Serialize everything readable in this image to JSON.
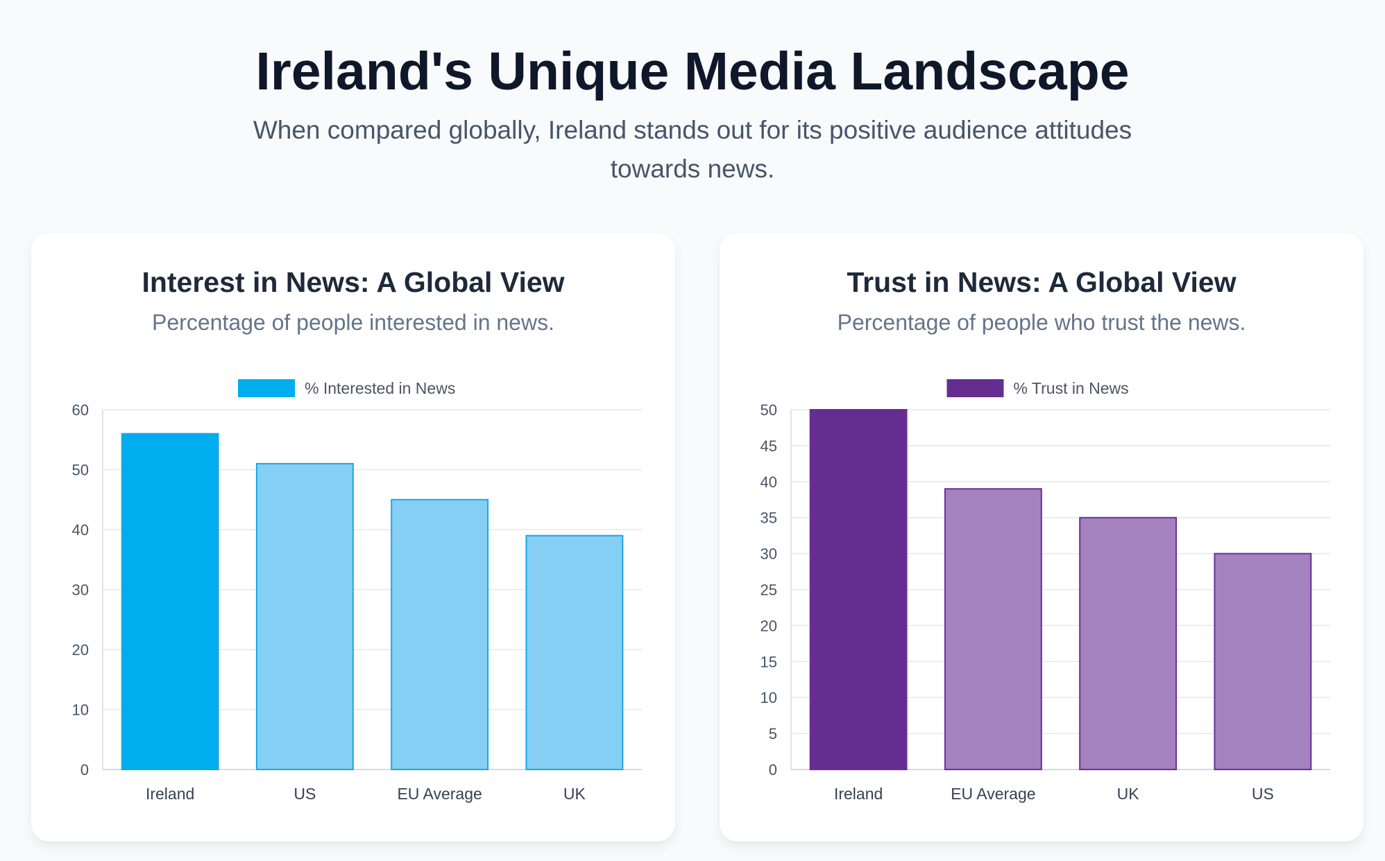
{
  "header": {
    "title": "Ireland's Unique Media Landscape",
    "subtitle": "When compared globally, Ireland stands out for its positive audience attitudes towards news."
  },
  "cards": [
    {
      "title": "Interest in News: A Global View",
      "subtitle": "Percentage of people interested in news."
    },
    {
      "title": "Trust in News: A Global View",
      "subtitle": "Percentage of people who trust the news."
    }
  ],
  "chart_data": [
    {
      "type": "bar",
      "categories": [
        "Ireland",
        "US",
        "EU Average",
        "UK"
      ],
      "series": [
        {
          "name": "% Interested in News",
          "values": [
            56,
            51,
            45,
            39
          ]
        }
      ],
      "ylim": [
        0,
        60
      ],
      "yticks": [
        0,
        10,
        20,
        30,
        40,
        50,
        60
      ],
      "grid": true,
      "legend": "top-center",
      "colors": {
        "highlight_fill": "#00aeef",
        "fill": "#85cff5",
        "border": "#1aa7e6",
        "legend": "#00aeef"
      }
    },
    {
      "type": "bar",
      "categories": [
        "Ireland",
        "EU Average",
        "UK",
        "US"
      ],
      "series": [
        {
          "name": "% Trust in News",
          "values": [
            50,
            39,
            35,
            30
          ]
        }
      ],
      "ylim": [
        0,
        50
      ],
      "yticks": [
        0,
        5,
        10,
        15,
        20,
        25,
        30,
        35,
        40,
        45,
        50
      ],
      "grid": true,
      "legend": "top-center",
      "colors": {
        "highlight_fill": "#662d91",
        "fill": "#a482be",
        "border": "#6b2e9a",
        "legend": "#662d91"
      }
    }
  ]
}
